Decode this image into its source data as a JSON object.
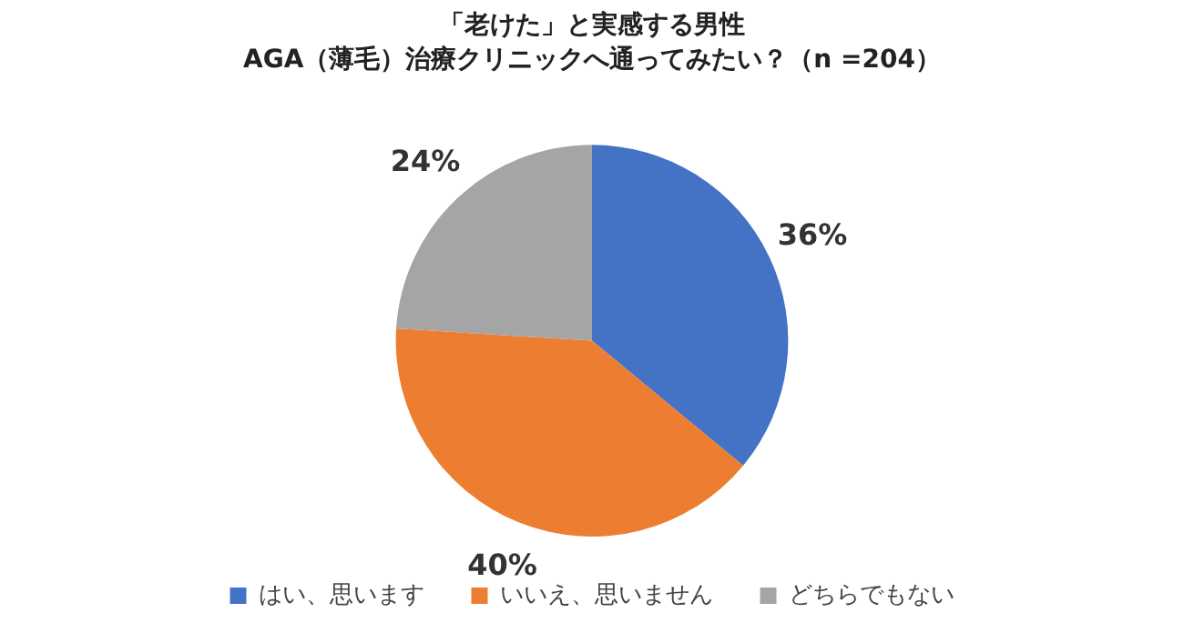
{
  "chart_data": {
    "type": "pie",
    "title": "「老けた」と実感する男性",
    "subtitle": "AGA（薄毛）治療クリニックへ通ってみたい？（n =204）",
    "categories": [
      "はい、思います",
      "いいえ、思いません",
      "どちらでもない"
    ],
    "values": [
      36,
      40,
      24
    ],
    "colors": [
      "#4472c4",
      "#ed7d31",
      "#a5a5a5"
    ],
    "value_labels": [
      "36%",
      "40%",
      "24%"
    ],
    "legend": "bottom"
  }
}
